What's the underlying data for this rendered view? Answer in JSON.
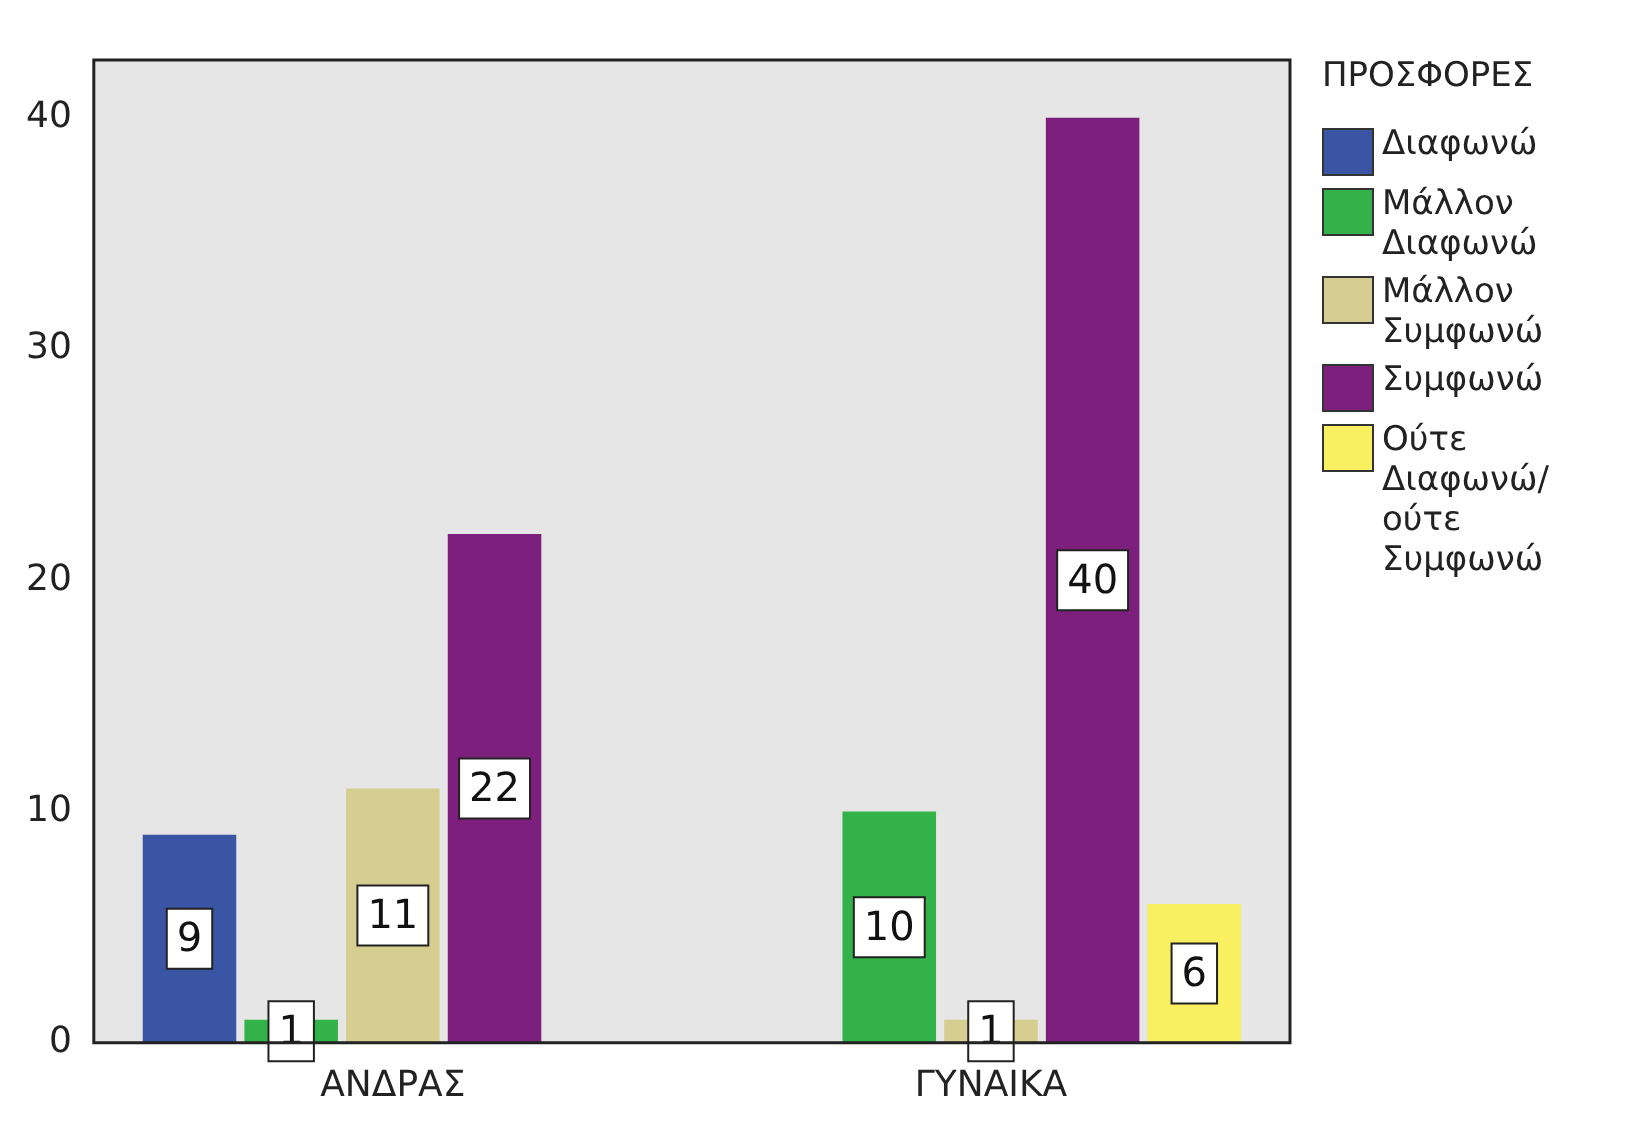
{
  "chart_data": {
    "type": "bar",
    "legend_title": "ΠΡΟΣΦΟΡΕΣ",
    "categories": [
      "ΑΝΔΡΑΣ",
      "ΓΥΝΑΙΚΑ"
    ],
    "series": [
      {
        "name": "Διαφωνώ",
        "color": "#3b55a5",
        "values": [
          9,
          null
        ]
      },
      {
        "name": "Μάλλον Διαφωνώ",
        "color": "#33b24a",
        "values": [
          1,
          10
        ]
      },
      {
        "name": "Μάλλον Συμφωνώ",
        "color": "#d6cd90",
        "values": [
          11,
          1
        ]
      },
      {
        "name": "Συμφωνώ",
        "color": "#7d1f7c",
        "values": [
          22,
          40
        ]
      },
      {
        "name": "Ούτε Διαφωνώ/ούτε Συμφωνώ",
        "color": "#f8f060",
        "values": [
          null,
          6
        ]
      }
    ],
    "ylim": [
      0,
      42.5
    ],
    "yticks": [
      0,
      10,
      20,
      30,
      40
    ],
    "grid": false,
    "legend": "right",
    "data_labels": true
  }
}
